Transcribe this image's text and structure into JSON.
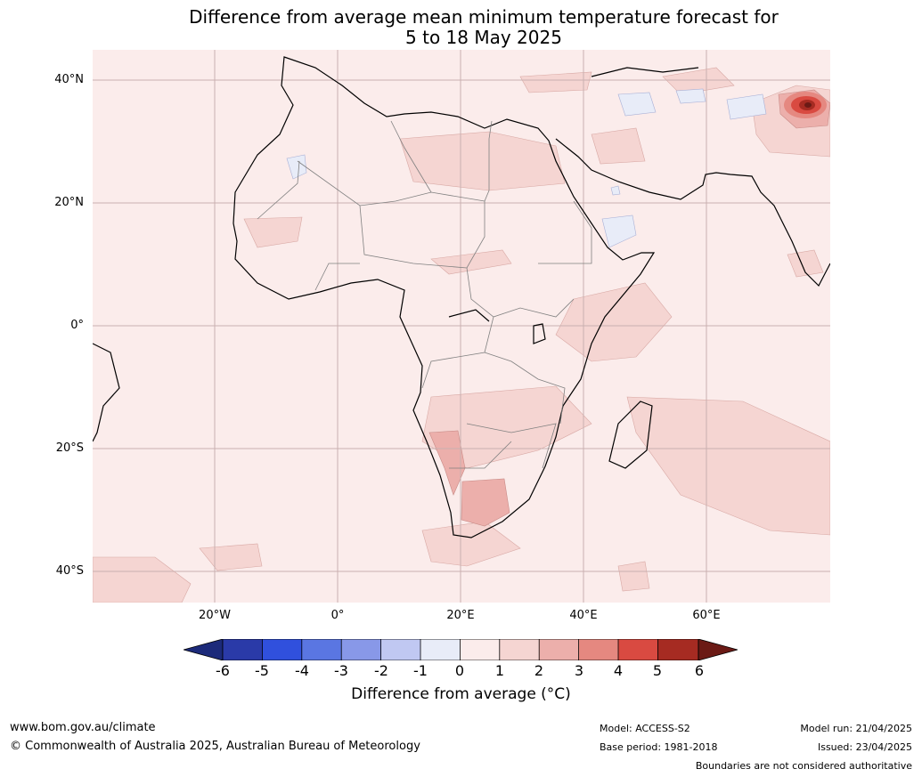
{
  "title_line1": "Difference from average mean minimum temperature forecast for",
  "title_line2": "5 to 18 May 2025",
  "map": {
    "lat_labels": [
      "40°N",
      "20°N",
      "0°",
      "20°S",
      "40°S"
    ],
    "lon_labels": [
      "20°W",
      "0°",
      "20°E",
      "40°E",
      "60°E"
    ],
    "background_color": "#fbeceb",
    "anomaly_colors": {
      "plus_0_1": "#fbeceb",
      "plus_1_2": "#f5d5d2",
      "plus_2_3": "#ecafab",
      "plus_3_4": "#e58880",
      "plus_4_5": "#d94a41",
      "plus_5_6": "#a62b22",
      "minus_1_0": "#e8ecf8"
    }
  },
  "colorbar": {
    "labels": [
      "-6",
      "-5",
      "-4",
      "-3",
      "-2",
      "-1",
      "0",
      "1",
      "2",
      "3",
      "4",
      "5",
      "6"
    ],
    "colors": [
      "#1c2a7a",
      "#2a3aa8",
      "#3050dd",
      "#5a76e2",
      "#8898e8",
      "#c0c8f2",
      "#e8ecf8",
      "#fbeceb",
      "#f5d5d2",
      "#ecafab",
      "#e58880",
      "#d94a41",
      "#a62b22",
      "#6b1a15"
    ],
    "title": "Difference from average (°C)"
  },
  "footer": {
    "website": "www.bom.gov.au/climate",
    "copyright": "© Commonwealth of Australia 2025, Australian Bureau of Meteorology",
    "model": "Model: ACCESS-S2",
    "base_period": "Base period: 1981-2018",
    "model_run": "Model run: 21/04/2025",
    "issued": "Issued: 23/04/2025",
    "disclaimer": "Boundaries are not considered authoritative"
  }
}
